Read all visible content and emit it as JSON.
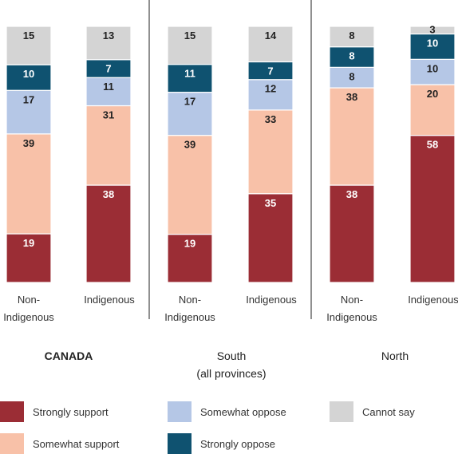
{
  "chart_data": {
    "type": "bar",
    "stacked": true,
    "normalized_percent": true,
    "categories": [
      "Non-Indigenous",
      "Indigenous",
      "Non-Indigenous",
      "Indigenous",
      "Non-Indigenous",
      "Indigenous"
    ],
    "category_label_lines": [
      [
        "Non-",
        "Indigenous"
      ],
      [
        "Indigenous"
      ],
      [
        "Non-",
        "Indigenous"
      ],
      [
        "Indigenous"
      ],
      [
        "Non-",
        "Indigenous"
      ],
      [
        "Indigenous"
      ]
    ],
    "groups": [
      {
        "label_lines": [
          "CANADA"
        ],
        "bold": true
      },
      {
        "label_lines": [
          "South",
          "(all provinces)"
        ],
        "bold": false
      },
      {
        "label_lines": [
          "North"
        ],
        "bold": false
      }
    ],
    "series": [
      {
        "name": "Strongly support",
        "color": "#9b2d35",
        "label_color": "#ffffff",
        "values": [
          19,
          38,
          19,
          35,
          38,
          58
        ]
      },
      {
        "name": "Somewhat support",
        "color": "#f8c1a8",
        "label_color": "#222222",
        "values": [
          39,
          31,
          39,
          33,
          38,
          20
        ]
      },
      {
        "name": "Somewhat oppose",
        "color": "#b5c7e6",
        "label_color": "#222222",
        "values": [
          17,
          11,
          17,
          12,
          8,
          10
        ]
      },
      {
        "name": "Strongly oppose",
        "color": "#0f5270",
        "label_color": "#ffffff",
        "values": [
          10,
          7,
          11,
          7,
          8,
          10
        ]
      },
      {
        "name": "Cannot say",
        "color": "#d4d4d4",
        "label_color": "#222222",
        "values": [
          15,
          13,
          15,
          14,
          8,
          3
        ]
      }
    ],
    "legend": {
      "position": "bottom",
      "items": [
        "Strongly support",
        "Somewhat oppose",
        "Cannot say",
        "Somewhat support",
        "Strongly oppose"
      ]
    },
    "title": "",
    "xlabel": "",
    "ylabel": "",
    "ylim": [
      0,
      100
    ],
    "grid": false
  }
}
